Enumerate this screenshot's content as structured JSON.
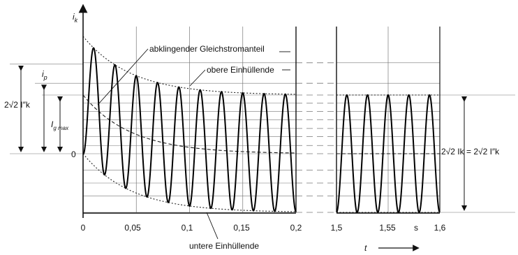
{
  "chart_data": {
    "type": "line",
    "y_axis_symbol": "i",
    "y_axis_symbol_sub": "k",
    "x_axis_symbol": "t",
    "x_ticks_left": [
      "0",
      "0,05",
      "0,1",
      "0,15",
      "0,2"
    ],
    "x_ticks_right": [
      "1,5",
      "1,55",
      "1,6"
    ],
    "x_unit": "s",
    "y_zero_label": "0",
    "xlim_left": [
      0,
      0.2
    ],
    "xlim_right": [
      1.5,
      1.6
    ],
    "ylim": [
      -1.0,
      1.2
    ],
    "series": [
      {
        "values_note": "",
        "role": "short-circuit current"
      }
    ],
    "oscillation_period": 0.02,
    "steady_amplitude": 1.0,
    "dc_initial": 1.0,
    "dc_time_constant": 0.045,
    "annotations": {
      "dc_component": "abklingender Gleichstromanteil",
      "upper_envelope": "obere Einhüllende",
      "lower_envelope": "untere Einhüllende",
      "peak": "i",
      "peak_sub": "p",
      "dc_max": "I",
      "dc_max_sub": "g max",
      "initial_peak_to_peak": "2√2 I″k",
      "steady_peak_to_peak_left": "2√2 Ik",
      "steady_peak_to_peak_eq": "=",
      "steady_peak_to_peak_right": "2√2 I″k"
    }
  }
}
